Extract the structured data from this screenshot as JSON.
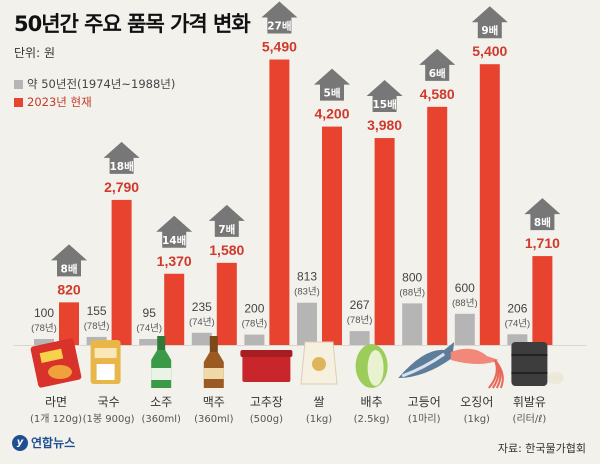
{
  "title": "50년간 주요 품목 가격 변화",
  "unit": "단위: 원",
  "legend": {
    "old": "약 50년전(1974년~1988년)",
    "new": "2023년 현재"
  },
  "source": "자료: 한국물가협회",
  "logo": "연합뉴스",
  "colors": {
    "old": "#b5b5b5",
    "new": "#e8432f",
    "arrow": "#777777",
    "newText": "#d0392b"
  },
  "chart_data": {
    "type": "bar",
    "categories": [
      "라면",
      "국수",
      "소주",
      "맥주",
      "고추장",
      "쌀",
      "배추",
      "고등어",
      "오징어",
      "휘발유"
    ],
    "category_units": [
      "(1개 120g)",
      "(1봉 900g)",
      "(360ml)",
      "(360ml)",
      "(500g)",
      "(1kg)",
      "(2.5kg)",
      "(1마리)",
      "(1kg)",
      "(리터/ℓ)"
    ],
    "icons": [
      "ramen-icon",
      "noodle-icon",
      "soju-icon",
      "beer-icon",
      "gochujang-icon",
      "rice-icon",
      "cabbage-icon",
      "mackerel-icon",
      "squid-icon",
      "oil-drum-icon"
    ],
    "series": [
      {
        "name": "약 50년전(1974년~1988년)",
        "values": [
          100,
          155,
          95,
          235,
          200,
          813,
          267,
          800,
          600,
          206
        ],
        "labels": [
          "100",
          "155",
          "95",
          "235",
          "200",
          "813",
          "267",
          "800",
          "600",
          "206"
        ],
        "years": [
          "(78년)",
          "(78년)",
          "(74년)",
          "(74년)",
          "(78년)",
          "(83년)",
          "(78년)",
          "(88년)",
          "(88년)",
          "(74년)"
        ]
      },
      {
        "name": "2023년 현재",
        "values": [
          820,
          2790,
          1370,
          1580,
          5490,
          4200,
          3980,
          4580,
          5400,
          1710
        ],
        "labels": [
          "820",
          "2,790",
          "1,370",
          "1,580",
          "5,490",
          "4,200",
          "3,980",
          "4,580",
          "5,400",
          "1,710"
        ]
      }
    ],
    "multipliers": [
      "8배",
      "18배",
      "14배",
      "7배",
      "27배",
      "5배",
      "15배",
      "6배",
      "9배",
      "8배"
    ]
  }
}
